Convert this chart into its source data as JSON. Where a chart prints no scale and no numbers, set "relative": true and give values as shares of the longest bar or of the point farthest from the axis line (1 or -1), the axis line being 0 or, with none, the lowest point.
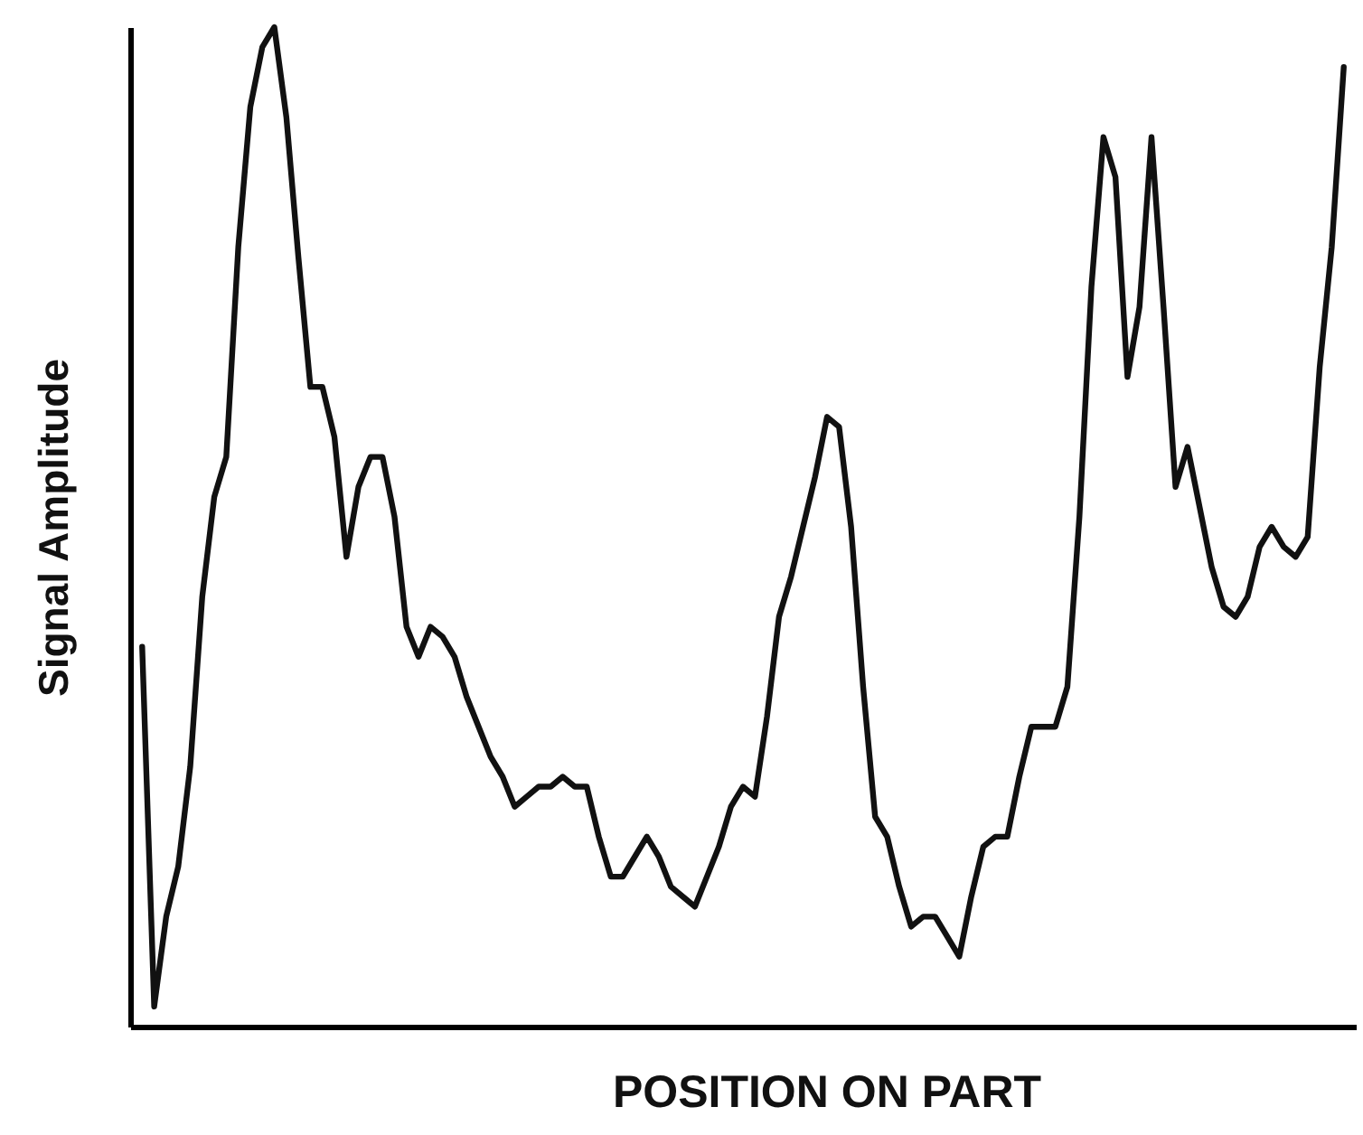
{
  "chart_data": {
    "type": "line",
    "relative": true,
    "xlabel": "POSITION ON PART",
    "ylabel": "Signal Amplitude",
    "categories": [
      null,
      null,
      null,
      null,
      null,
      null,
      null,
      null,
      null,
      null,
      null,
      null,
      null,
      null,
      null,
      null,
      null,
      null,
      null,
      null,
      null,
      null,
      null,
      null,
      null,
      null,
      null,
      null,
      null,
      null,
      null,
      null,
      null,
      null,
      null,
      null,
      null,
      null,
      null,
      null,
      null,
      null,
      null,
      null,
      null,
      null,
      null,
      null,
      null,
      null,
      null,
      null,
      null,
      null,
      null,
      null,
      null,
      null,
      null,
      null,
      null,
      null,
      null,
      null,
      null,
      null,
      null,
      null,
      null,
      null,
      null,
      null,
      null,
      null,
      null,
      null,
      null,
      null,
      null,
      null,
      null,
      null,
      null,
      null,
      null,
      null,
      null,
      null,
      null,
      null,
      null,
      null,
      null,
      null,
      null,
      null,
      null,
      null,
      null,
      null,
      null
    ],
    "series": [
      {
        "color": "#111111",
        "values": [
          0.38,
          0.02,
          0.11,
          0.16,
          0.26,
          0.43,
          0.53,
          0.57,
          0.78,
          0.92,
          0.98,
          1.0,
          0.91,
          0.77,
          0.64,
          0.64,
          0.59,
          0.47,
          0.54,
          0.57,
          0.57,
          0.51,
          0.4,
          0.37,
          0.4,
          0.39,
          0.37,
          0.33,
          0.3,
          0.27,
          0.25,
          0.22,
          0.23,
          0.24,
          0.24,
          0.25,
          0.24,
          0.24,
          0.19,
          0.15,
          0.15,
          0.17,
          0.19,
          0.17,
          0.14,
          0.13,
          0.12,
          0.15,
          0.18,
          0.22,
          0.24,
          0.23,
          0.31,
          0.41,
          0.45,
          0.5,
          0.55,
          0.61,
          0.6,
          0.5,
          0.34,
          0.21,
          0.19,
          0.14,
          0.1,
          0.11,
          0.11,
          0.09,
          0.07,
          0.13,
          0.18,
          0.19,
          0.19,
          0.25,
          0.3,
          0.3,
          0.3,
          0.34,
          0.51,
          0.74,
          0.89,
          0.85,
          0.65,
          0.72,
          0.89,
          0.72,
          0.54,
          0.58,
          0.52,
          0.46,
          0.42,
          0.41,
          0.43,
          0.48,
          0.5,
          0.48,
          0.47,
          0.49,
          0.66,
          0.78,
          0.96
        ]
      }
    ]
  }
}
